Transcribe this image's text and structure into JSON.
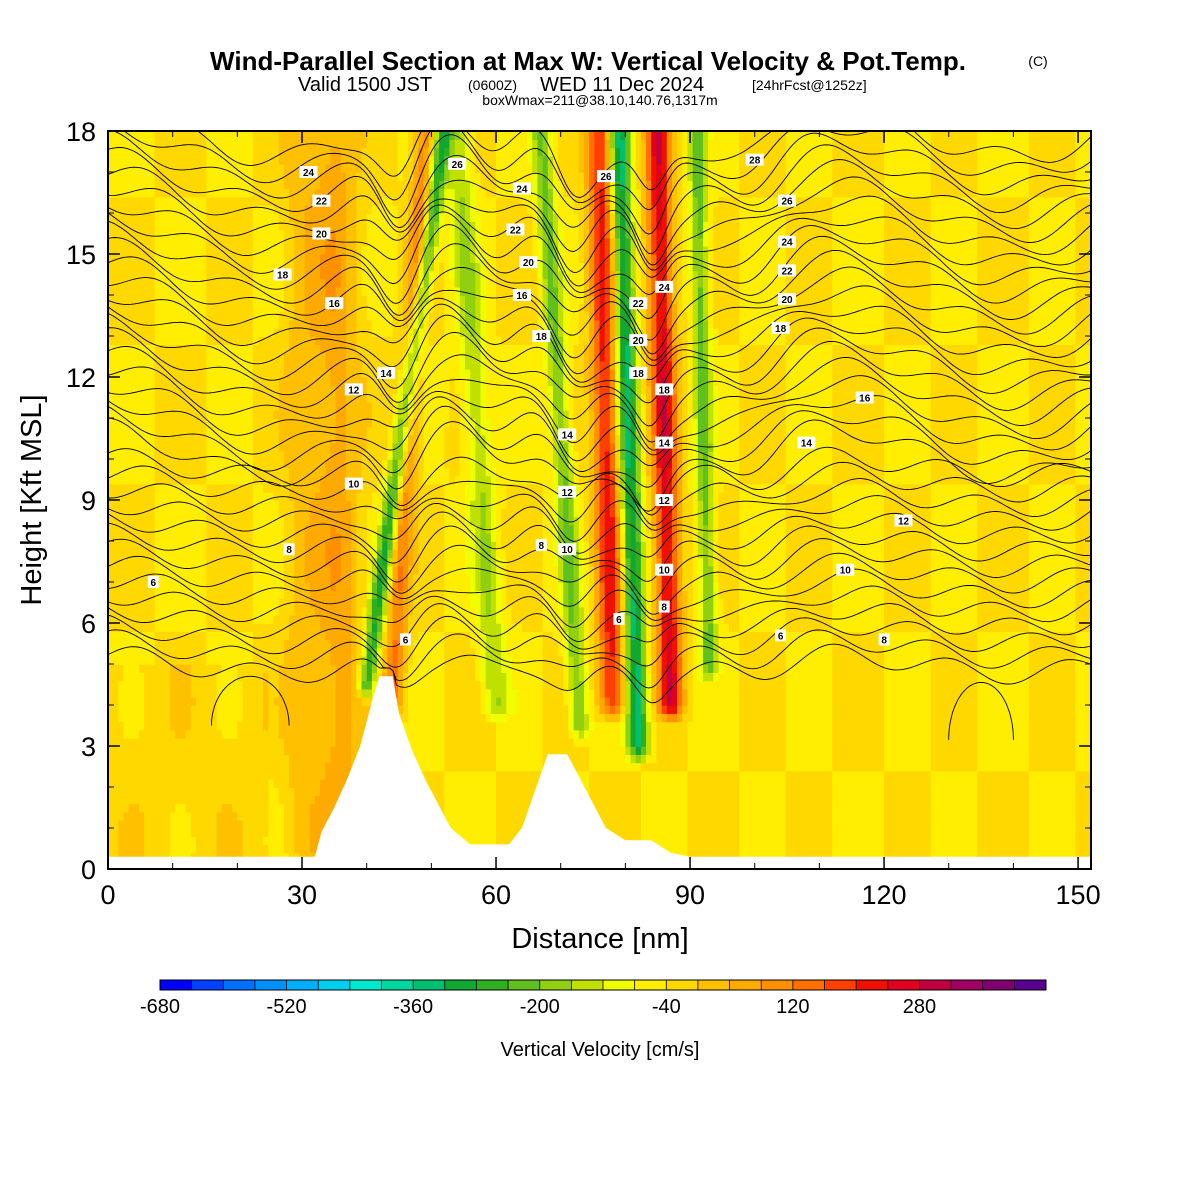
{
  "header": {
    "title": "Wind-Parallel Section at Max W: Vertical Velocity & Pot.Temp.",
    "copyright": "(C)",
    "valid_prefix": "Valid 1500 JST",
    "valid_utc": "(0600Z)",
    "valid_date": "WED 11 Dec 2024",
    "forecast": "[24hrFcst@1252z]",
    "box_info": "boxWmax=211@38.10,140.76,1317m"
  },
  "chart_data": {
    "type": "heatmap",
    "title": "Wind-Parallel Section at Max W: Vertical Velocity & Pot.Temp.",
    "xlabel": "Distance [nm]",
    "ylabel": "Height [Kft MSL]",
    "xlim": [
      0,
      152
    ],
    "ylim": [
      0,
      18
    ],
    "x_ticks": [
      0,
      30,
      60,
      90,
      120,
      150
    ],
    "y_ticks": [
      0,
      3,
      6,
      9,
      12,
      15,
      18
    ],
    "colorbar": {
      "label": "Vertical Velocity [cm/s]",
      "tick_values": [
        -680,
        -520,
        -360,
        -200,
        -40,
        120,
        280
      ],
      "colors": [
        "#0000ff",
        "#0040ff",
        "#0070ff",
        "#0090ff",
        "#00b0ff",
        "#00d0f0",
        "#00e8d0",
        "#00d8a0",
        "#00c070",
        "#10a830",
        "#30b020",
        "#60c020",
        "#90d010",
        "#c0e000",
        "#f0ff00",
        "#ffee00",
        "#ffd800",
        "#ffc000",
        "#ffaa00",
        "#ff9000",
        "#ff7000",
        "#ff4000",
        "#f01000",
        "#e00020",
        "#c00040",
        "#a00060",
        "#800070",
        "#5a0090"
      ]
    },
    "velocity_field": {
      "background": -40,
      "streaks": [
        {
          "x_base": 40,
          "x_top": 52,
          "y_base": 4.5,
          "w": -250,
          "width": 1.3
        },
        {
          "x_base": 44,
          "x_top": 49,
          "y_base": 4.0,
          "w": 160,
          "width": 1.6
        },
        {
          "x_base": 60,
          "x_top": 54,
          "y_base": 4.0,
          "w": -120,
          "width": 2.0
        },
        {
          "x_base": 73,
          "x_top": 67,
          "y_base": 3.5,
          "w": -170,
          "width": 1.5
        },
        {
          "x_base": 78,
          "x_top": 76,
          "y_base": 4.0,
          "w": 260,
          "width": 2.0
        },
        {
          "x_base": 82,
          "x_top": 79,
          "y_base": 3.0,
          "w": -300,
          "width": 1.6
        },
        {
          "x_base": 87,
          "x_top": 85,
          "y_base": 4.0,
          "w": 300,
          "width": 1.9
        },
        {
          "x_base": 93,
          "x_top": 91,
          "y_base": 5.0,
          "w": -180,
          "width": 1.3
        },
        {
          "x_base": 36,
          "x_top": 35,
          "y_base": 0.5,
          "w": 100,
          "width": 3.5
        },
        {
          "x_base": 30,
          "x_top": 30,
          "y_base": 0.5,
          "w": 60,
          "width": 3.0
        }
      ]
    },
    "terrain": [
      [
        0,
        0.3
      ],
      [
        32,
        0.3
      ],
      [
        33,
        0.9
      ],
      [
        35,
        1.5
      ],
      [
        37,
        2.2
      ],
      [
        39,
        3.0
      ],
      [
        41,
        4.2
      ],
      [
        42,
        4.7
      ],
      [
        44,
        4.7
      ],
      [
        45,
        3.8
      ],
      [
        47,
        2.9
      ],
      [
        49,
        2.2
      ],
      [
        51,
        1.6
      ],
      [
        53,
        1.0
      ],
      [
        56,
        0.6
      ],
      [
        62,
        0.6
      ],
      [
        64,
        1.0
      ],
      [
        66,
        1.9
      ],
      [
        68,
        2.8
      ],
      [
        71,
        2.8
      ],
      [
        73,
        2.2
      ],
      [
        75,
        1.6
      ],
      [
        77,
        1.0
      ],
      [
        80,
        0.7
      ],
      [
        84,
        0.7
      ],
      [
        87,
        0.4
      ],
      [
        90,
        0.3
      ],
      [
        152,
        0.3
      ]
    ],
    "theta_contours": {
      "levels": [
        6,
        8,
        10,
        12,
        14,
        16,
        18,
        20,
        22,
        24,
        26,
        28
      ],
      "labels": [
        {
          "text": "6",
          "x": 7,
          "y": 7.0
        },
        {
          "text": "8",
          "x": 28,
          "y": 7.8
        },
        {
          "text": "10",
          "x": 38,
          "y": 9.4
        },
        {
          "text": "12",
          "x": 38,
          "y": 11.7
        },
        {
          "text": "16",
          "x": 35,
          "y": 13.8
        },
        {
          "text": "18",
          "x": 27,
          "y": 14.5
        },
        {
          "text": "20",
          "x": 33,
          "y": 15.5
        },
        {
          "text": "22",
          "x": 33,
          "y": 16.3
        },
        {
          "text": "24",
          "x": 31,
          "y": 17.0
        },
        {
          "text": "14",
          "x": 43,
          "y": 12.1
        },
        {
          "text": "6",
          "x": 46,
          "y": 5.6
        },
        {
          "text": "26",
          "x": 54,
          "y": 17.2
        },
        {
          "text": "24",
          "x": 64,
          "y": 16.6
        },
        {
          "text": "22",
          "x": 63,
          "y": 15.6
        },
        {
          "text": "20",
          "x": 65,
          "y": 14.8
        },
        {
          "text": "16",
          "x": 64,
          "y": 14.0
        },
        {
          "text": "18",
          "x": 67,
          "y": 13.0
        },
        {
          "text": "14",
          "x": 71,
          "y": 10.6
        },
        {
          "text": "12",
          "x": 71,
          "y": 9.2
        },
        {
          "text": "8",
          "x": 67,
          "y": 7.9
        },
        {
          "text": "10",
          "x": 71,
          "y": 7.8
        },
        {
          "text": "6",
          "x": 79,
          "y": 6.1
        },
        {
          "text": "26",
          "x": 77,
          "y": 16.9
        },
        {
          "text": "24",
          "x": 86,
          "y": 14.2
        },
        {
          "text": "22",
          "x": 82,
          "y": 13.8
        },
        {
          "text": "20",
          "x": 82,
          "y": 12.9
        },
        {
          "text": "18",
          "x": 82,
          "y": 12.1
        },
        {
          "text": "18",
          "x": 86,
          "y": 11.7
        },
        {
          "text": "14",
          "x": 86,
          "y": 10.4
        },
        {
          "text": "12",
          "x": 86,
          "y": 9.0
        },
        {
          "text": "10",
          "x": 86,
          "y": 7.3
        },
        {
          "text": "8",
          "x": 86,
          "y": 6.4
        },
        {
          "text": "28",
          "x": 100,
          "y": 17.3
        },
        {
          "text": "26",
          "x": 105,
          "y": 16.3
        },
        {
          "text": "24",
          "x": 105,
          "y": 15.3
        },
        {
          "text": "22",
          "x": 105,
          "y": 14.6
        },
        {
          "text": "20",
          "x": 105,
          "y": 13.9
        },
        {
          "text": "18",
          "x": 104,
          "y": 13.2
        },
        {
          "text": "14",
          "x": 108,
          "y": 10.4
        },
        {
          "text": "10",
          "x": 114,
          "y": 7.3
        },
        {
          "text": "6",
          "x": 104,
          "y": 5.7
        },
        {
          "text": "16",
          "x": 117,
          "y": 11.5
        },
        {
          "text": "12",
          "x": 123,
          "y": 8.5
        },
        {
          "text": "8",
          "x": 120,
          "y": 5.6
        }
      ]
    }
  }
}
